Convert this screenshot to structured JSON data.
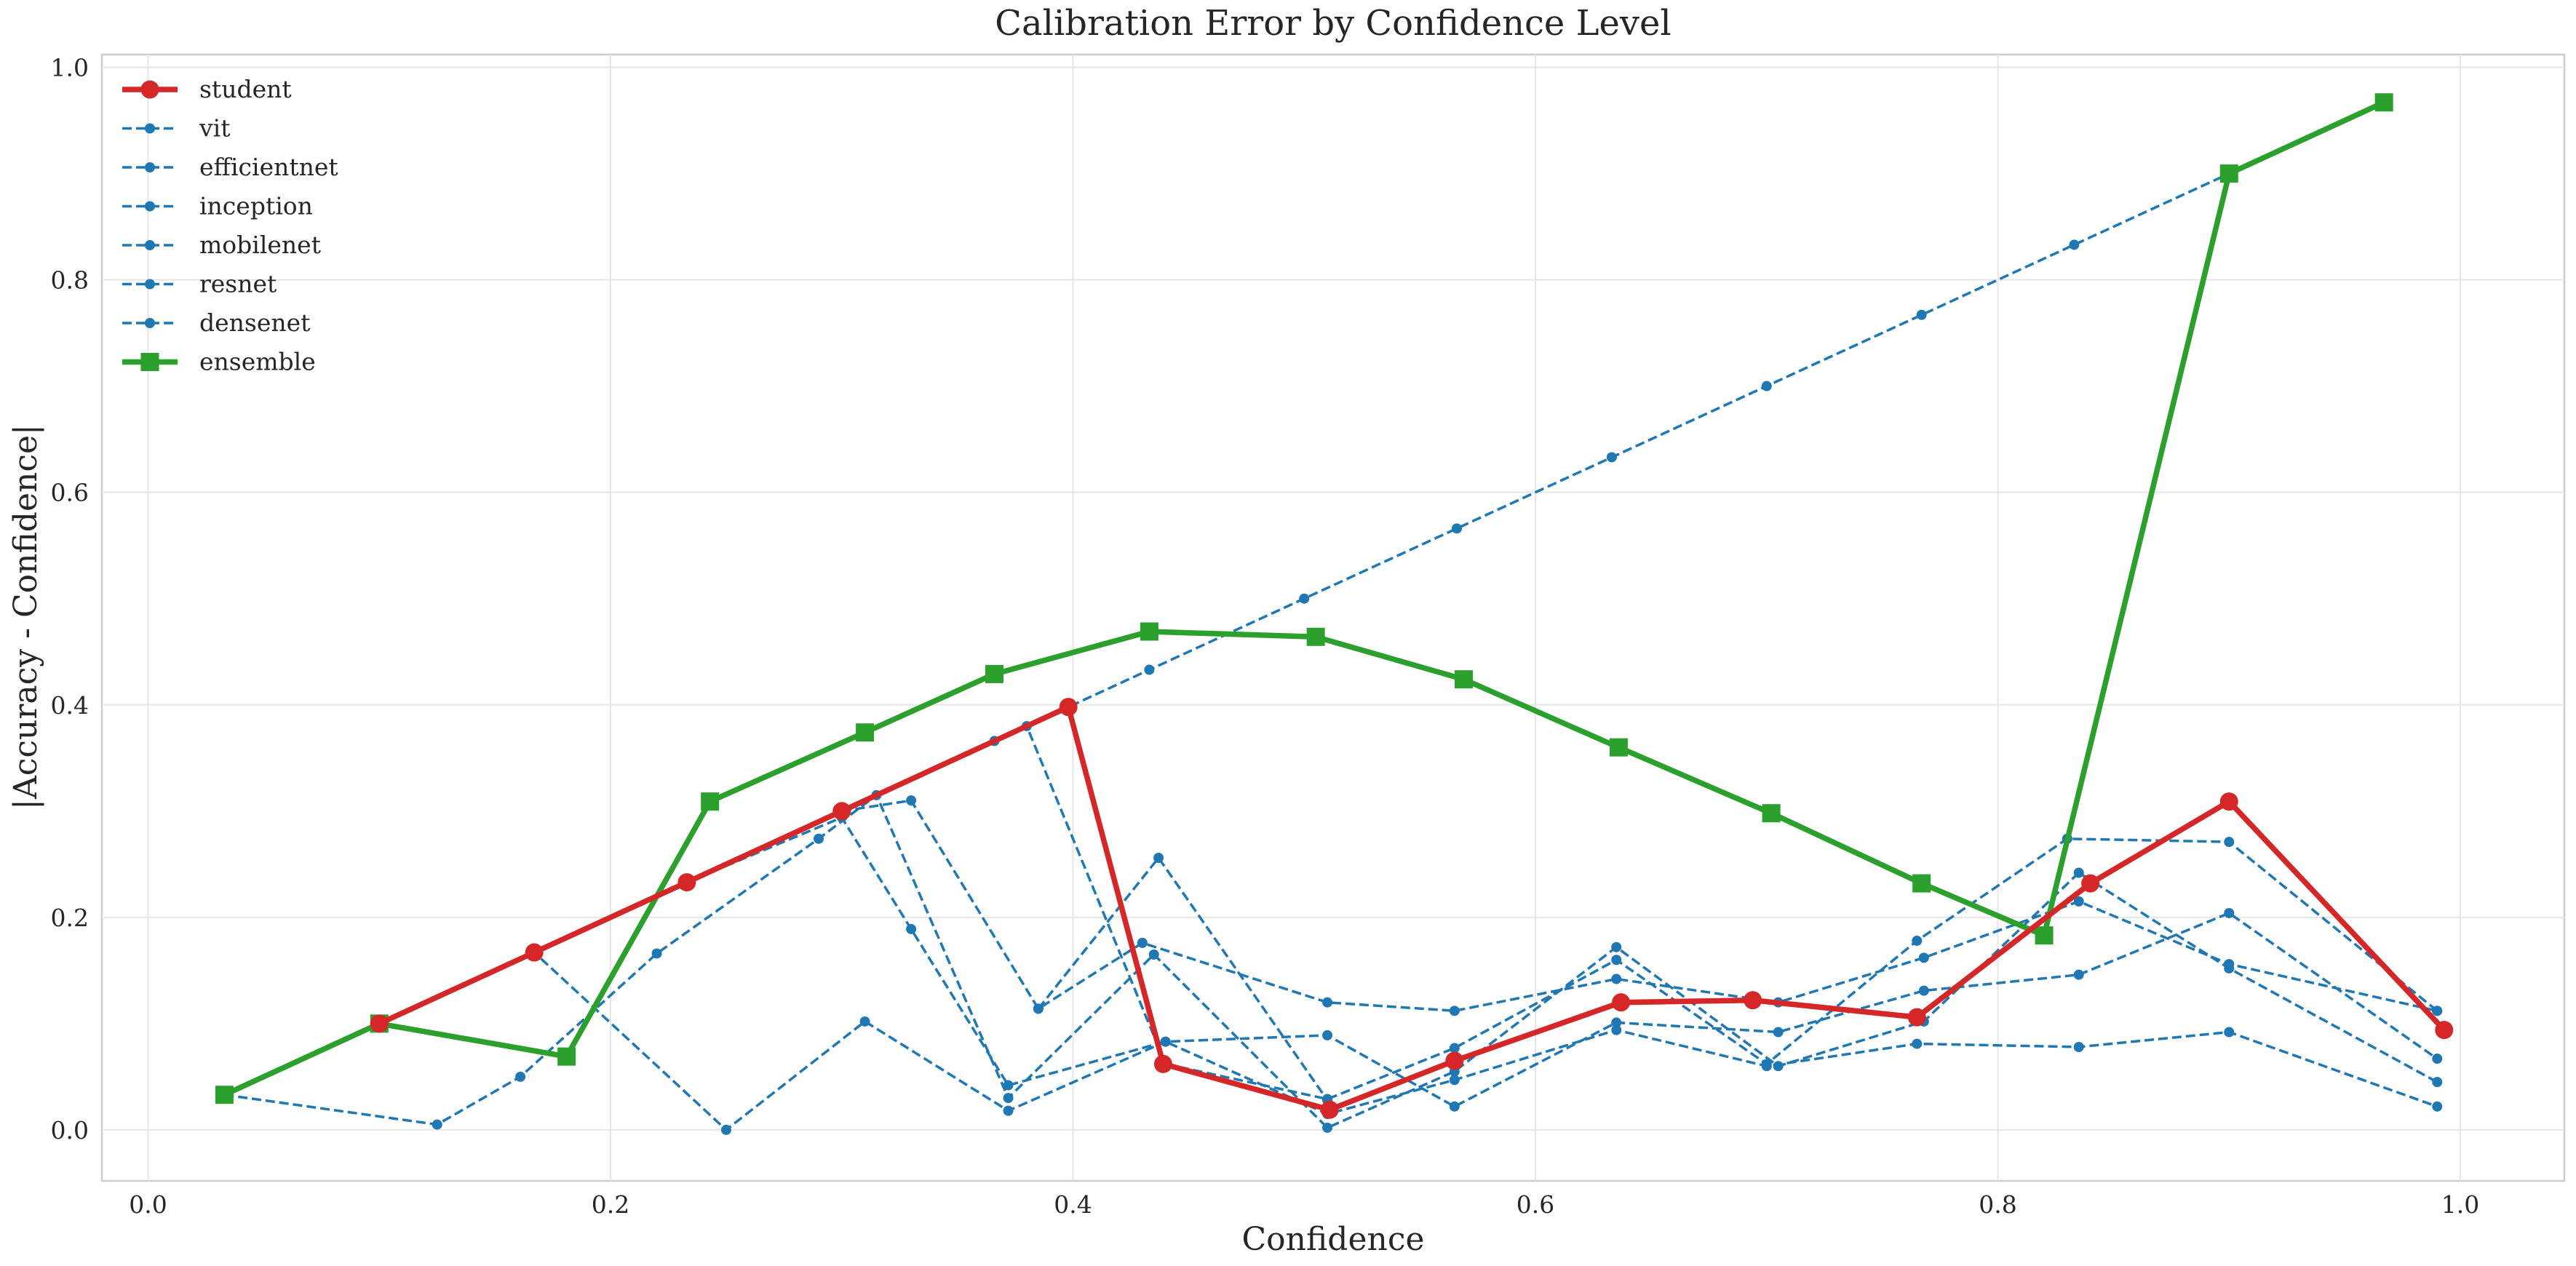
{
  "chart_data": {
    "type": "line",
    "title": "Calibration Error by Confidence Level",
    "xlabel": "Confidence",
    "ylabel": "|Accuracy - Confidence|",
    "xlim": [
      -0.02,
      1.045
    ],
    "ylim": [
      -0.048,
      1.012
    ],
    "xticks": [
      0.0,
      0.2,
      0.4,
      0.6,
      0.8,
      1.0
    ],
    "yticks": [
      0.0,
      0.2,
      0.4,
      0.6,
      0.8,
      1.0
    ],
    "xtick_labels": [
      "0.0",
      "0.2",
      "0.4",
      "0.6",
      "0.8",
      "1.0"
    ],
    "ytick_labels": [
      "0.0",
      "0.2",
      "0.4",
      "0.6",
      "0.8",
      "1.0"
    ],
    "grid": true,
    "legend_position": "top-left",
    "colors": {
      "student": "#d62728",
      "baseline": "#1f77b4",
      "ensemble": "#2ca02c"
    },
    "series": [
      {
        "name": "student",
        "style": "solid-circle",
        "color": "#d62728",
        "x": [
          0.1,
          0.167,
          0.233,
          0.3,
          0.398,
          0.439,
          0.511,
          0.565,
          0.637,
          0.694,
          0.765,
          0.84,
          0.9,
          0.993
        ],
        "y": [
          0.1,
          0.167,
          0.233,
          0.3,
          0.398,
          0.062,
          0.019,
          0.065,
          0.12,
          0.122,
          0.106,
          0.232,
          0.309,
          0.094
        ]
      },
      {
        "name": "vit",
        "style": "dashed-dot",
        "color": "#1f77b4",
        "x": [
          0.1,
          0.167,
          0.233,
          0.3,
          0.366,
          0.433,
          0.5,
          0.566,
          0.633,
          0.7,
          0.767,
          0.833,
          0.9,
          0.967
        ],
        "y": [
          0.1,
          0.167,
          0.233,
          0.3,
          0.366,
          0.433,
          0.5,
          0.566,
          0.633,
          0.7,
          0.767,
          0.833,
          0.9,
          0.967
        ]
      },
      {
        "name": "efficientnet",
        "style": "dashed-dot",
        "color": "#1f77b4",
        "x": [
          0.1,
          0.167,
          0.233,
          0.3,
          0.38,
          0.44,
          0.51,
          0.565,
          0.635,
          0.7,
          0.765,
          0.83,
          0.9,
          0.99
        ],
        "y": [
          0.1,
          0.167,
          0.233,
          0.3,
          0.38,
          0.062,
          0.029,
          0.077,
          0.16,
          0.062,
          0.178,
          0.274,
          0.271,
          0.112
        ]
      },
      {
        "name": "inception",
        "style": "dashed-dot",
        "color": "#1f77b4",
        "x": [
          0.033,
          0.125,
          0.161,
          0.22,
          0.29,
          0.315,
          0.372,
          0.435,
          0.51,
          0.565,
          0.635,
          0.705,
          0.768,
          0.835,
          0.9,
          0.99
        ],
        "y": [
          0.033,
          0.005,
          0.05,
          0.166,
          0.274,
          0.315,
          0.03,
          0.165,
          0.002,
          0.055,
          0.172,
          0.06,
          0.102,
          0.242,
          0.152,
          0.045
        ]
      },
      {
        "name": "mobilenet",
        "style": "dashed-dot",
        "color": "#1f77b4",
        "x": [
          0.1,
          0.167,
          0.25,
          0.31,
          0.372,
          0.44,
          0.51,
          0.565,
          0.635,
          0.705,
          0.768,
          0.835,
          0.9,
          0.99
        ],
        "y": [
          0.1,
          0.167,
          0.0,
          0.102,
          0.018,
          0.083,
          0.089,
          0.022,
          0.101,
          0.092,
          0.131,
          0.146,
          0.204,
          0.067
        ]
      },
      {
        "name": "resnet",
        "style": "dashed-dot",
        "color": "#1f77b4",
        "x": [
          0.233,
          0.3,
          0.33,
          0.372,
          0.44,
          0.51,
          0.565,
          0.635,
          0.7,
          0.765,
          0.835,
          0.9,
          0.99
        ],
        "y": [
          0.233,
          0.294,
          0.189,
          0.042,
          0.083,
          0.015,
          0.047,
          0.094,
          0.06,
          0.081,
          0.078,
          0.092,
          0.022
        ]
      },
      {
        "name": "densenet",
        "style": "dashed-dot",
        "color": "#1f77b4",
        "x": [
          0.3,
          0.33,
          0.385,
          0.43,
          0.51,
          0.565,
          0.635,
          0.705,
          0.768,
          0.835,
          0.9,
          0.99
        ],
        "y": [
          0.3,
          0.31,
          0.114,
          0.176,
          0.12,
          0.112,
          0.142,
          0.12,
          0.162,
          0.215,
          0.156,
          0.112
        ]
      },
      {
        "name": "",
        "style": "dashed-dot",
        "color": "#1f77b4",
        "x": [
          0.385,
          0.437,
          0.51
        ],
        "y": [
          0.114,
          0.256,
          0.028
        ]
      },
      {
        "name": "ensemble",
        "style": "solid-square",
        "color": "#2ca02c",
        "x": [
          0.033,
          0.1,
          0.181,
          0.243,
          0.31,
          0.366,
          0.433,
          0.505,
          0.569,
          0.636,
          0.702,
          0.767,
          0.82,
          0.9,
          0.967
        ],
        "y": [
          0.033,
          0.1,
          0.069,
          0.309,
          0.374,
          0.429,
          0.469,
          0.464,
          0.424,
          0.36,
          0.298,
          0.232,
          0.183,
          0.9,
          0.967
        ]
      }
    ]
  }
}
